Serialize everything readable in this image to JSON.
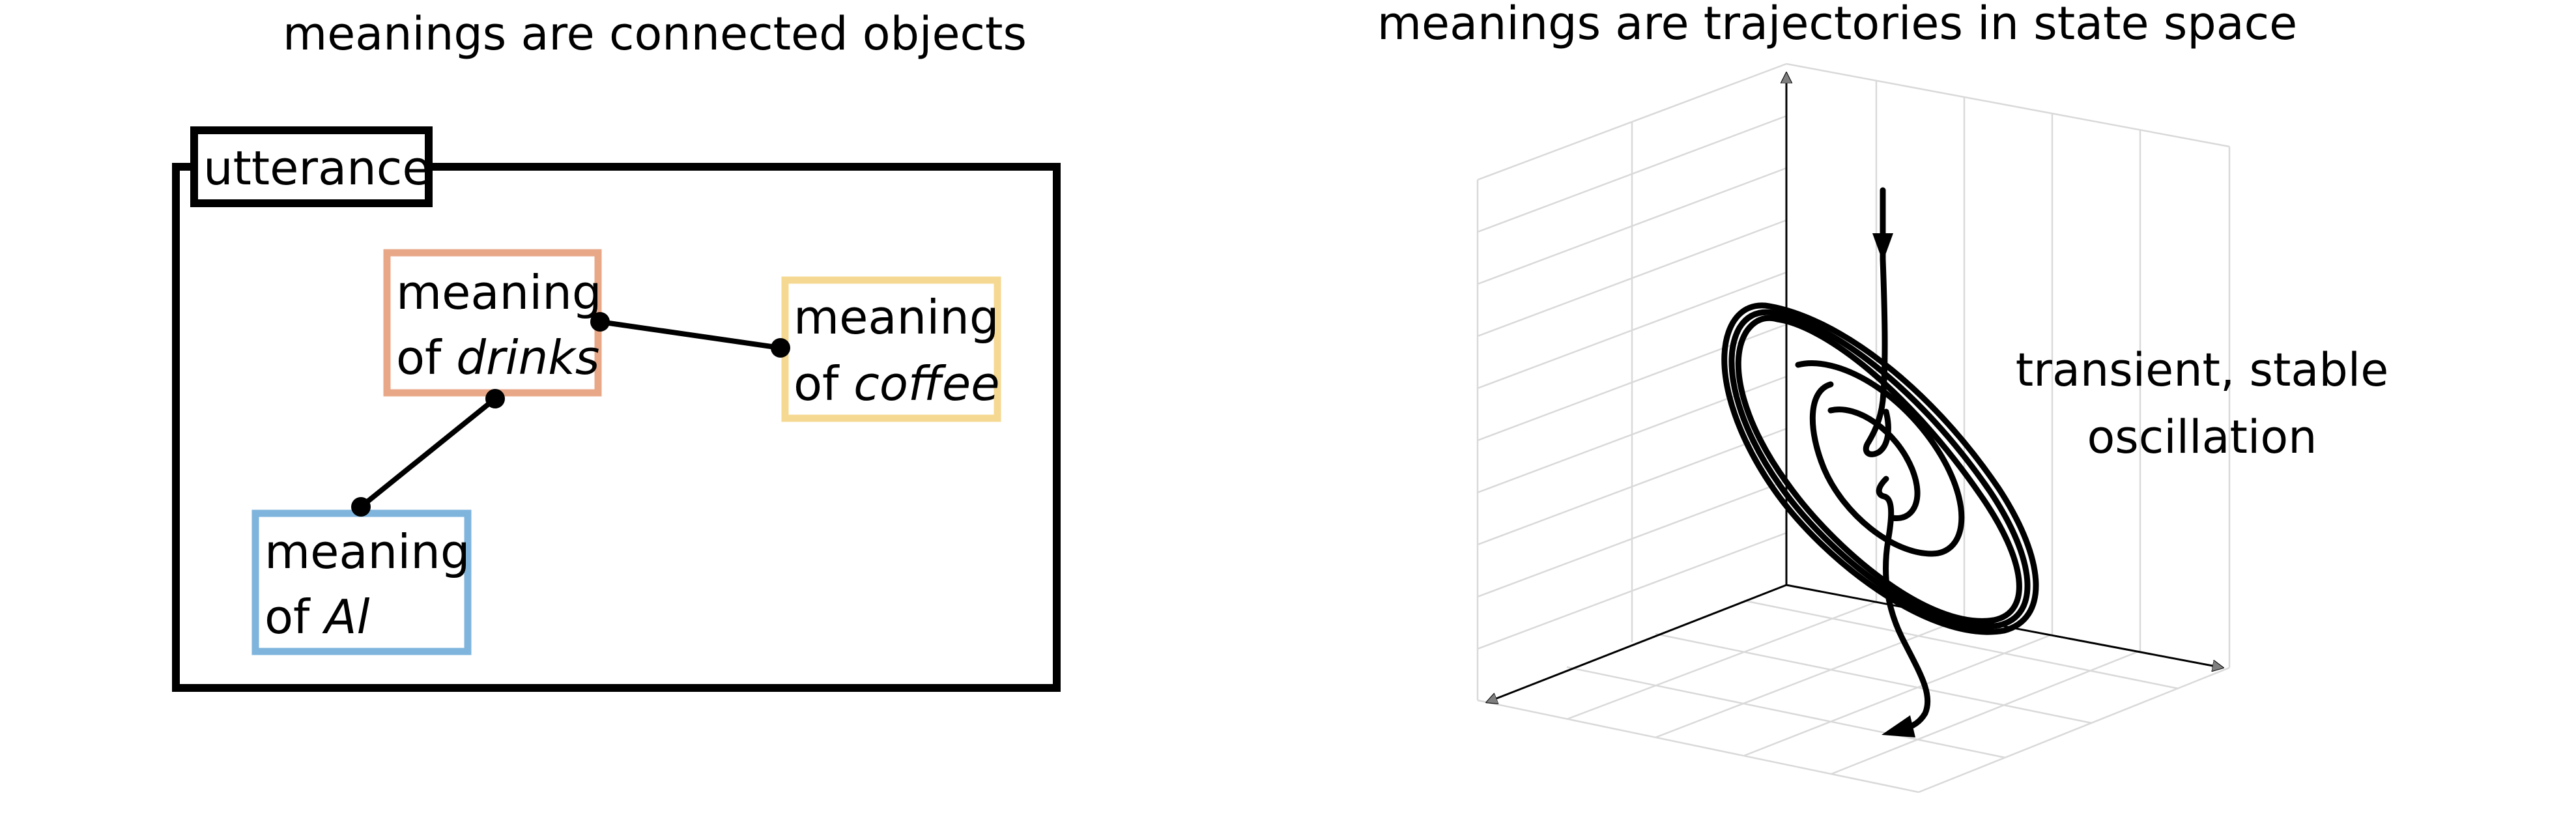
{
  "left_panel": {
    "title": "meanings are connected objects",
    "container_label": "utterance",
    "boxes": {
      "drinks": {
        "line1": "meaning",
        "line2_prefix": "of ",
        "word": "drinks",
        "color": "#e8a888"
      },
      "coffee": {
        "line1": "meaning",
        "line2_prefix": "of ",
        "word": "coffee",
        "color": "#f5d992"
      },
      "al": {
        "line1": "meaning",
        "line2_prefix": "of ",
        "word": "Al",
        "color": "#7fb5dd"
      }
    }
  },
  "right_panel": {
    "title": "meanings are trajectories in state space",
    "annotation_line1": "transient, stable",
    "annotation_line2": "oscillation"
  }
}
